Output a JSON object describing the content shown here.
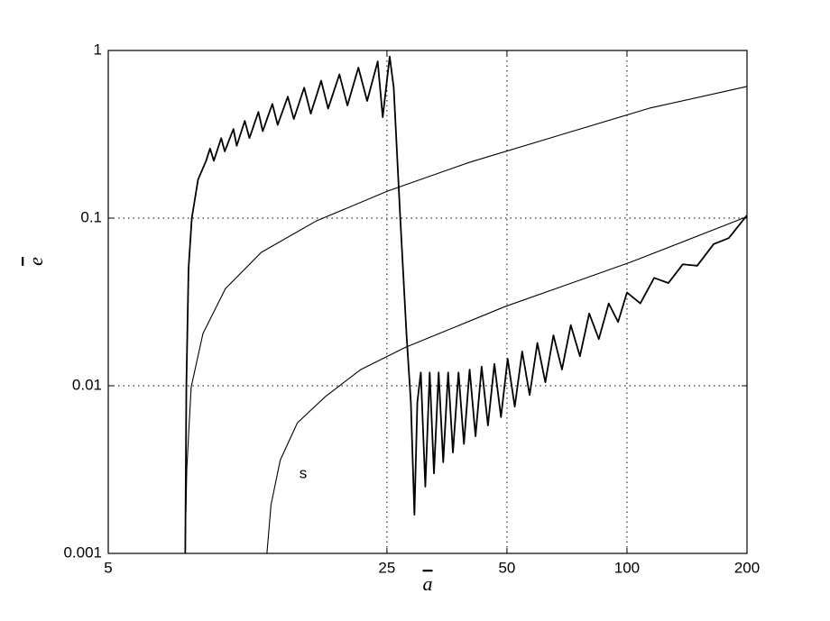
{
  "chart_data": {
    "type": "line",
    "xscale": "log",
    "yscale": "log",
    "xlabel": "a",
    "ylabel": "e",
    "annotation": "s",
    "xlim": [
      5,
      200
    ],
    "ylim": [
      0.001,
      1
    ],
    "xticks": [
      5,
      25,
      50,
      100,
      200
    ],
    "yticks": [
      0.001,
      0.01,
      0.1,
      1
    ],
    "grid": true,
    "series": [
      {
        "color": "#000000",
        "x": [
          7.8,
          7.85,
          7.95,
          8.1,
          8.4,
          8.8,
          9.0,
          9.2,
          9.6,
          9.8,
          10.3,
          10.5,
          11.0,
          11.3,
          11.9,
          12.2,
          12.9,
          13.3,
          14.1,
          14.6,
          15.5,
          16.1,
          17.1,
          17.8,
          19.0,
          19.9,
          21.2,
          22.3,
          23.7,
          24.4,
          25.4,
          26.0,
          27.0,
          28.0,
          28.7,
          29.3,
          29.8,
          30.4,
          31.2,
          32.0,
          32.8,
          33.7,
          34.6,
          35.6,
          36.6,
          37.8,
          39.0,
          40.3,
          41.7,
          43.2,
          44.8,
          46.5,
          48.3,
          50.2,
          52.3,
          54.6,
          57.0,
          59.6,
          62.4,
          65.4,
          68.7,
          72.3,
          76.2,
          80.4,
          85,
          90,
          95,
          100,
          108,
          117,
          127,
          138,
          150,
          165,
          180,
          200
        ],
        "values": [
          0.001,
          0.01,
          0.05,
          0.1,
          0.17,
          0.22,
          0.26,
          0.22,
          0.3,
          0.25,
          0.34,
          0.27,
          0.38,
          0.3,
          0.43,
          0.33,
          0.48,
          0.36,
          0.53,
          0.39,
          0.6,
          0.42,
          0.66,
          0.45,
          0.72,
          0.47,
          0.79,
          0.5,
          0.86,
          0.4,
          0.92,
          0.6,
          0.1,
          0.02,
          0.008,
          0.0017,
          0.008,
          0.012,
          0.0025,
          0.012,
          0.003,
          0.012,
          0.0035,
          0.012,
          0.004,
          0.012,
          0.0045,
          0.0125,
          0.005,
          0.013,
          0.0058,
          0.0135,
          0.0065,
          0.0145,
          0.0075,
          0.016,
          0.0088,
          0.018,
          0.0105,
          0.02,
          0.0125,
          0.023,
          0.015,
          0.027,
          0.019,
          0.031,
          0.024,
          0.036,
          0.031,
          0.044,
          0.041,
          0.053,
          0.052,
          0.07,
          0.076,
          0.104
        ]
      },
      {
        "color": "#000000",
        "x": [
          7.79,
          7.87,
          8.07,
          8.64,
          9.84,
          12.1,
          16.6,
          25.1,
          40.2,
          67.6,
          114,
          200
        ],
        "values": [
          0.001,
          0.0032,
          0.0098,
          0.0205,
          0.038,
          0.0625,
          0.096,
          0.145,
          0.215,
          0.312,
          0.453,
          0.61
        ]
      },
      {
        "color": "#000000",
        "x": [
          12.5,
          12.8,
          13.5,
          14.9,
          17.5,
          21.5,
          27.9,
          49.5,
          103,
          200
        ],
        "values": [
          0.001,
          0.00195,
          0.0036,
          0.006,
          0.0086,
          0.0125,
          0.017,
          0.0297,
          0.055,
          0.102
        ]
      }
    ]
  }
}
